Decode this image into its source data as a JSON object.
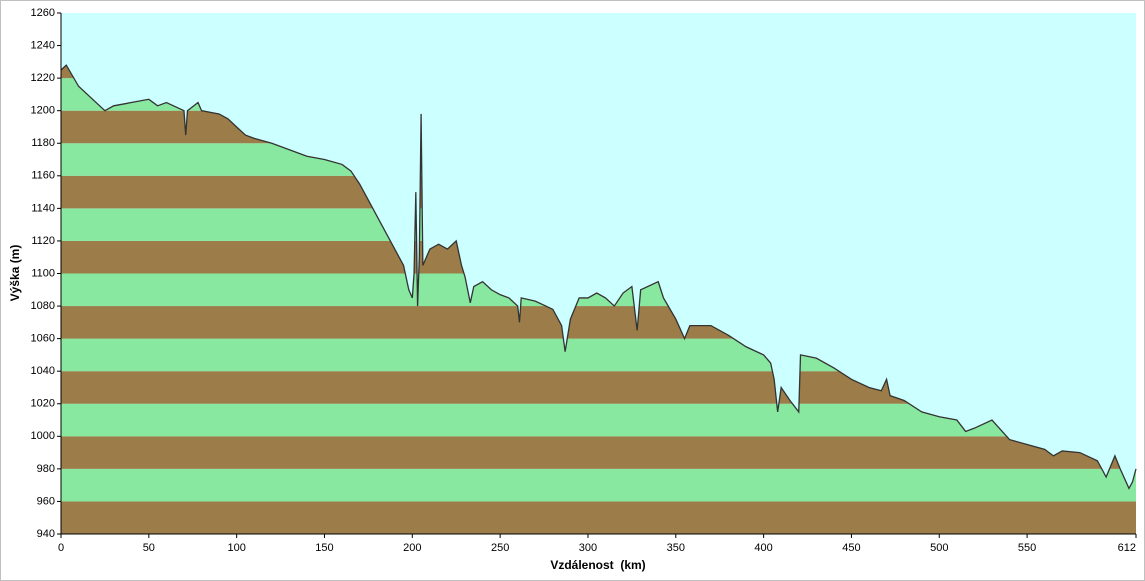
{
  "chart_data": {
    "type": "area",
    "xlabel": "Vzdálenost  (km)",
    "ylabel": "Výška (m)",
    "xlim": [
      0,
      612
    ],
    "ylim": [
      940,
      1260
    ],
    "xticks": [
      0,
      50,
      100,
      150,
      200,
      250,
      300,
      350,
      400,
      450,
      500,
      550,
      612
    ],
    "yticks": [
      940,
      960,
      980,
      1000,
      1020,
      1040,
      1060,
      1080,
      1100,
      1120,
      1140,
      1160,
      1180,
      1200,
      1220,
      1240,
      1260
    ],
    "background": "#ccffff",
    "band_colors": [
      "#9c7c48",
      "#88e8a0"
    ],
    "line_color": "#333333",
    "x": [
      0,
      3,
      10,
      20,
      25,
      30,
      40,
      50,
      55,
      60,
      70,
      71,
      72,
      78,
      80,
      90,
      95,
      100,
      105,
      110,
      120,
      130,
      140,
      150,
      160,
      165,
      170,
      175,
      180,
      185,
      190,
      195,
      198,
      200,
      201,
      202,
      203,
      204,
      205,
      206,
      210,
      215,
      220,
      225,
      228,
      230,
      233,
      235,
      240,
      245,
      250,
      255,
      260,
      261,
      262,
      270,
      280,
      285,
      287,
      290,
      295,
      300,
      305,
      310,
      315,
      320,
      325,
      328,
      330,
      340,
      343,
      350,
      355,
      358,
      370,
      380,
      390,
      400,
      404,
      406,
      408,
      410,
      415,
      420,
      421,
      430,
      440,
      450,
      460,
      467,
      470,
      472,
      480,
      490,
      500,
      510,
      515,
      520,
      530,
      540,
      550,
      560,
      565,
      570,
      580,
      590,
      595,
      600,
      603,
      608,
      610,
      612
    ],
    "y": [
      1225,
      1228,
      1215,
      1205,
      1200,
      1203,
      1205,
      1207,
      1203,
      1205,
      1200,
      1185,
      1200,
      1205,
      1200,
      1198,
      1195,
      1190,
      1185,
      1183,
      1180,
      1176,
      1172,
      1170,
      1167,
      1163,
      1155,
      1145,
      1135,
      1125,
      1115,
      1105,
      1090,
      1085,
      1100,
      1150,
      1080,
      1110,
      1198,
      1105,
      1115,
      1118,
      1115,
      1120,
      1105,
      1098,
      1082,
      1092,
      1095,
      1090,
      1087,
      1085,
      1080,
      1070,
      1085,
      1083,
      1078,
      1068,
      1052,
      1072,
      1085,
      1085,
      1088,
      1085,
      1080,
      1088,
      1092,
      1065,
      1090,
      1095,
      1085,
      1072,
      1060,
      1068,
      1068,
      1062,
      1055,
      1050,
      1045,
      1035,
      1015,
      1030,
      1022,
      1015,
      1050,
      1048,
      1042,
      1035,
      1030,
      1028,
      1035,
      1025,
      1022,
      1015,
      1012,
      1010,
      1003,
      1005,
      1010,
      998,
      995,
      992,
      988,
      991,
      990,
      985,
      975,
      988,
      980,
      968,
      972,
      980
    ]
  }
}
